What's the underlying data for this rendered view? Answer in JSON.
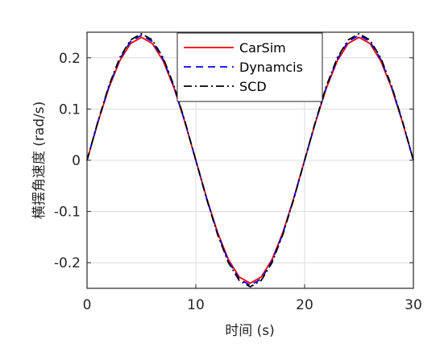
{
  "chart_data": {
    "type": "line",
    "xlabel": "时间 (s)",
    "ylabel": "横摆角速度 (rad/s)",
    "xlim": [
      0,
      30
    ],
    "ylim": [
      -0.25,
      0.25
    ],
    "x_ticks": [
      0,
      10,
      20,
      30
    ],
    "x_tick_labels": [
      "0",
      "10",
      "20",
      "30"
    ],
    "y_ticks": [
      0.2,
      0.1,
      0,
      -0.1,
      -0.2
    ],
    "y_tick_labels": [
      "0.2",
      "0.1",
      "0",
      "-0.1",
      "-0.2"
    ],
    "grid": true,
    "legend_position": "top-center",
    "x": [
      0,
      1,
      2,
      3,
      4,
      5,
      6,
      7,
      8,
      9,
      10,
      11,
      12,
      13,
      14,
      15,
      16,
      17,
      18,
      19,
      20,
      21,
      22,
      23,
      24,
      25,
      26,
      27,
      28,
      29,
      30
    ],
    "series": [
      {
        "name": "CarSim",
        "color": "#ff0000",
        "style": "solid",
        "values": [
          0,
          0.074,
          0.141,
          0.194,
          0.228,
          0.24,
          0.228,
          0.194,
          0.141,
          0.074,
          0,
          -0.074,
          -0.141,
          -0.194,
          -0.228,
          -0.24,
          -0.228,
          -0.194,
          -0.141,
          -0.074,
          0,
          0.074,
          0.141,
          0.194,
          0.228,
          0.24,
          0.228,
          0.194,
          0.141,
          0.074,
          0
        ]
      },
      {
        "name": "Dynamcis",
        "color": "#0000ff",
        "style": "dashed",
        "values": [
          0,
          0.075,
          0.143,
          0.197,
          0.232,
          0.244,
          0.232,
          0.197,
          0.143,
          0.075,
          0,
          -0.075,
          -0.143,
          -0.197,
          -0.232,
          -0.244,
          -0.232,
          -0.197,
          -0.143,
          -0.075,
          0,
          0.075,
          0.143,
          0.197,
          0.232,
          0.244,
          0.232,
          0.197,
          0.143,
          0.075,
          0
        ]
      },
      {
        "name": "SCD",
        "color": "#000000",
        "style": "dashdot",
        "values": [
          0,
          0.076,
          0.145,
          0.2,
          0.235,
          0.247,
          0.235,
          0.2,
          0.145,
          0.076,
          0,
          -0.076,
          -0.145,
          -0.2,
          -0.235,
          -0.247,
          -0.235,
          -0.2,
          -0.145,
          -0.076,
          0,
          0.076,
          0.145,
          0.2,
          0.235,
          0.247,
          0.235,
          0.2,
          0.145,
          0.076,
          0
        ]
      }
    ]
  }
}
